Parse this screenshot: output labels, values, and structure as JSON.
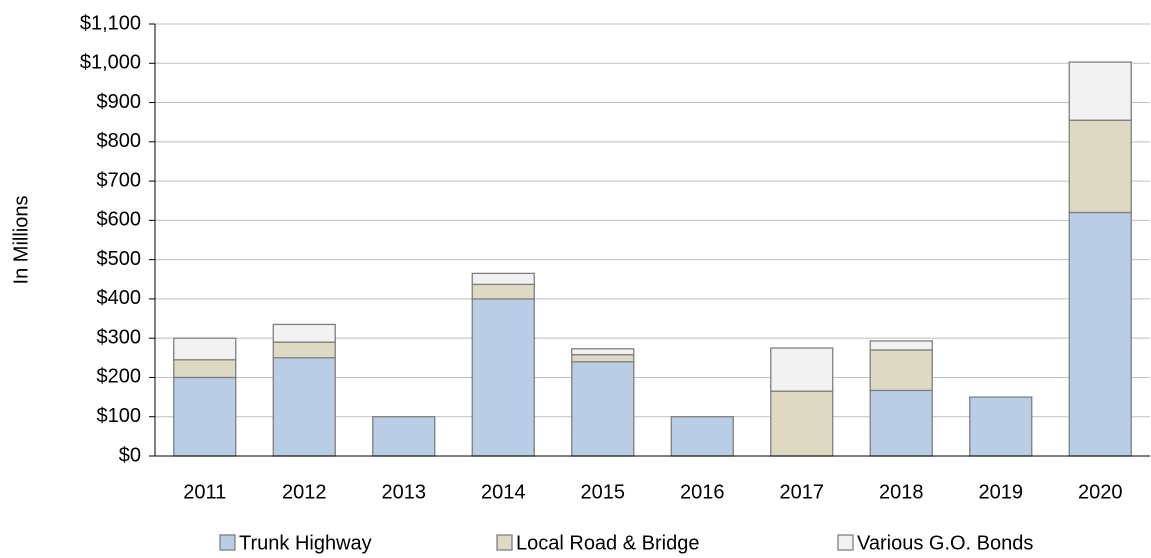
{
  "chart_data": {
    "type": "stacked_bar",
    "y_axis_label": "In Millions",
    "categories": [
      "2011",
      "2012",
      "2013",
      "2014",
      "2015",
      "2016",
      "2017",
      "2018",
      "2019",
      "2020"
    ],
    "series": [
      {
        "name": "Trunk Highway",
        "color": "#b9cde5",
        "values": [
          200,
          250,
          100,
          400,
          240,
          100,
          0,
          167,
          150,
          620
        ]
      },
      {
        "name": "Local Road & Bridge",
        "color": "#ddd9c3",
        "values": [
          45,
          40,
          0,
          37,
          18,
          0,
          165,
          103,
          0,
          235
        ]
      },
      {
        "name": "Various G.O. Bonds",
        "color": "#f2f2f2",
        "values": [
          55,
          45,
          0,
          28,
          15,
          0,
          110,
          23,
          0,
          148
        ]
      }
    ],
    "ylim": [
      0,
      1100
    ],
    "yticks": [
      {
        "value": 0,
        "label": "$0"
      },
      {
        "value": 100,
        "label": "$100"
      },
      {
        "value": 200,
        "label": "$200"
      },
      {
        "value": 300,
        "label": "$300"
      },
      {
        "value": 400,
        "label": "$400"
      },
      {
        "value": 500,
        "label": "$500"
      },
      {
        "value": 600,
        "label": "$600"
      },
      {
        "value": 700,
        "label": "$700"
      },
      {
        "value": 800,
        "label": "$800"
      },
      {
        "value": 900,
        "label": "$900"
      },
      {
        "value": 1000,
        "label": "$1,000"
      },
      {
        "value": 1100,
        "label": "$1,100"
      }
    ],
    "grid": true,
    "legend": "bottom"
  }
}
